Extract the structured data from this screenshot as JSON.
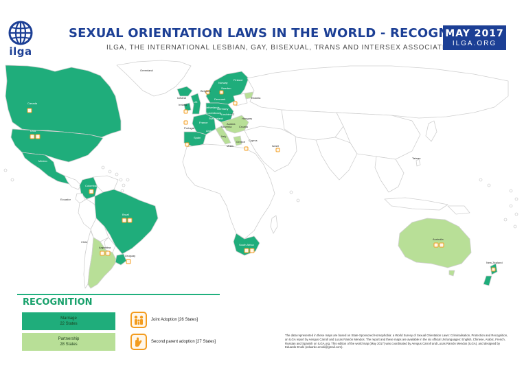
{
  "header": {
    "logo_text": "ilga",
    "title": "SEXUAL ORIENTATION LAWS IN THE WORLD - RECOGNITION",
    "subtitle": "ILGA, THE INTERNATIONAL LESBIAN, GAY, BISEXUAL, TRANS AND INTERSEX ASSOCIATION",
    "date": "MAY 2017",
    "site": "ILGA.ORG"
  },
  "colors": {
    "marriage": "#1fad7b",
    "partnership": "#b8df97",
    "adoption": "#f39c1f",
    "land": "#ffffff",
    "border": "#cfcfcf",
    "brand": "#1c3f95"
  },
  "map": {
    "labels": {
      "greenland": "Greenland",
      "canada": "Canada",
      "usa": "USA",
      "mexico": "Mexico",
      "colombia": "Colombia",
      "ecuador": "Ecuador",
      "brazil": "Brazil",
      "chile": "Chile",
      "argentina": "Argentina",
      "uruguay": "Uruguay",
      "iceland": "Iceland",
      "ireland": "Ireland",
      "uk": "UK",
      "france": "France",
      "portugal": "Portugal",
      "spain": "Spain",
      "norway": "Norway",
      "sweden": "Sweden",
      "finland": "Finland",
      "estonia": "Estonia",
      "denmark": "Denmark",
      "germany": "Germany",
      "belgium": "Belgium",
      "netherlands": "Netherlands",
      "luxembourg": "Luxembourg",
      "liechtenstein": "Liechtenstein",
      "switzerland": "Switzerland",
      "austria": "Austria",
      "czech": "CZ",
      "hungary": "Hungary",
      "croatia": "Croatia",
      "slovenia": "Slovenia",
      "italy": "Italy",
      "andorra": "Andorra",
      "greece": "Greece",
      "malta": "Malta",
      "cyprus": "Cyprus",
      "israel": "Israel",
      "south_africa": "South Africa",
      "australia": "Australia",
      "new_zealand": "New Zealand",
      "taiwan": "Taiwan"
    }
  },
  "legend": {
    "title": "RECOGNITION",
    "marriage_label": "Marriage",
    "marriage_count": "22 States",
    "partnership_label": "Partnership",
    "partnership_count": "28 States",
    "joint_adoption": "Joint Adoption [26 States]",
    "second_parent": "Second parent adoption [27 States]"
  },
  "footnote": "The data represented in these maps are based on State-Sponsored Homophobia: a World Survey of Sexual Orientation Laws: Criminalisation, Protection and Recognition, an ILGA report by Aengus Carroll and Lucas Ramón Mendos. The report and these maps are available in the six official UN languages: English, Chinese, Arabic, French, Russian and Spanish on ILGA.org. This edition of the world map (May 2017) was coordinated by Aengus Carroll and Lucas Ramón Mendos (ILGA), and designed by Eduardo Enoki (eduardo.enoki@gmail.com)."
}
